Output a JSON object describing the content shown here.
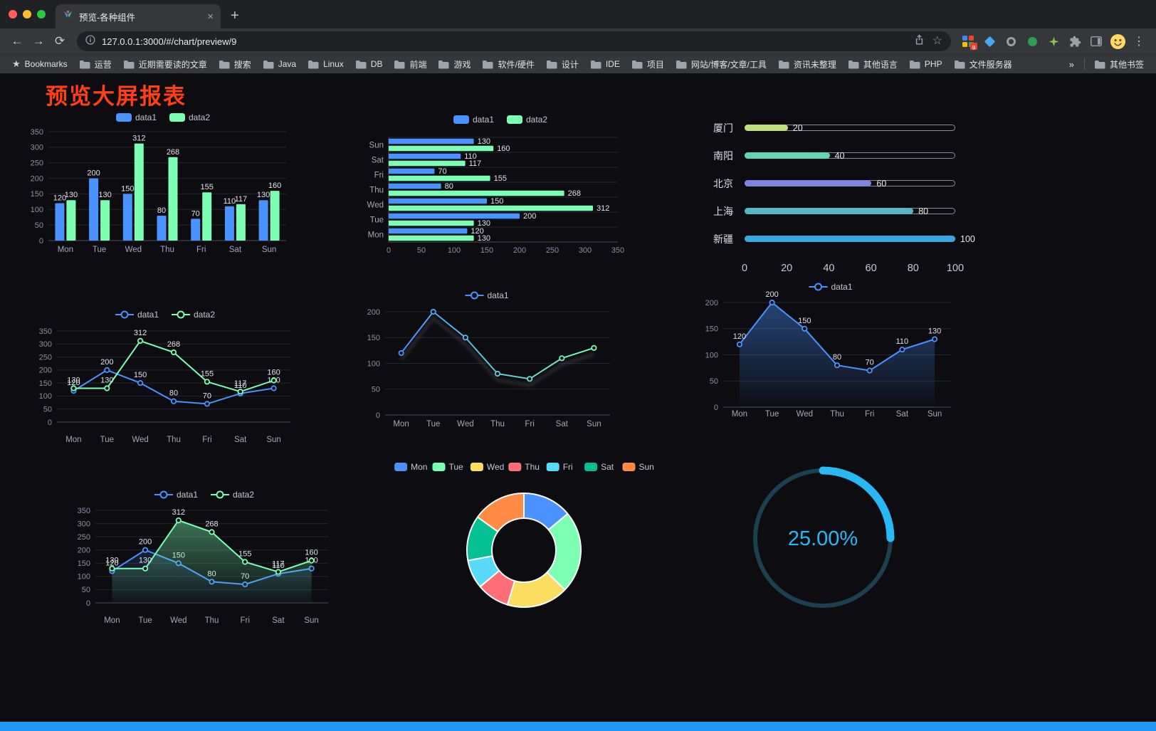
{
  "browser": {
    "tab_title": "预览-各种组件",
    "url": "127.0.0.1:3000/#/chart/preview/9",
    "bookmarks_label": "Bookmarks",
    "bookmarks": [
      "运营",
      "近期需要读的文章",
      "搜索",
      "Java",
      "Linux",
      "DB",
      "前端",
      "游戏",
      "软件/硬件",
      "设计",
      "IDE",
      "项目",
      "网站/博客/文章/工具",
      "资讯未整理",
      "其他语言",
      "PHP",
      "文件服务器"
    ],
    "bookmarks_overflow": "»",
    "other_bookmarks": "其他书签"
  },
  "page": {
    "title": "预览大屏报表"
  },
  "chart_data": [
    {
      "id": "bar-grouped",
      "type": "bar",
      "title": "",
      "legend": [
        "data1",
        "data2"
      ],
      "legend_position": "top",
      "categories": [
        "Mon",
        "Tue",
        "Wed",
        "Thu",
        "Fri",
        "Sat",
        "Sun"
      ],
      "series": [
        {
          "name": "data1",
          "color": "#4992ff",
          "values": [
            120,
            200,
            150,
            80,
            70,
            110,
            130
          ]
        },
        {
          "name": "data2",
          "color": "#7cffb2",
          "values": [
            130,
            130,
            312,
            268,
            155,
            117,
            160
          ]
        }
      ],
      "ylim": [
        0,
        350
      ],
      "ytick": 50,
      "grid": true,
      "labels": true
    },
    {
      "id": "bar-horizontal",
      "type": "hbar",
      "legend": [
        "data1",
        "data2"
      ],
      "legend_position": "top",
      "categories": [
        "Mon",
        "Tue",
        "Wed",
        "Thu",
        "Fri",
        "Sat",
        "Sun"
      ],
      "series": [
        {
          "name": "data1",
          "color": "#4992ff",
          "values": [
            120,
            200,
            150,
            80,
            70,
            110,
            130
          ]
        },
        {
          "name": "data2",
          "color": "#7cffb2",
          "values": [
            130,
            130,
            312,
            268,
            155,
            117,
            160
          ]
        }
      ],
      "xlim": [
        0,
        350
      ],
      "xtick": 50,
      "grid": true,
      "labels": true
    },
    {
      "id": "city-progress",
      "type": "progress",
      "items": [
        {
          "label": "厦门",
          "value": 20,
          "color": "#bfe07d"
        },
        {
          "label": "南阳",
          "value": 40,
          "color": "#63d5b2"
        },
        {
          "label": "北京",
          "value": 60,
          "color": "#7d85dd"
        },
        {
          "label": "上海",
          "value": 80,
          "color": "#56b6c4"
        },
        {
          "label": "新疆",
          "value": 100,
          "color": "#38a7e0"
        }
      ],
      "xlim": [
        0,
        100
      ],
      "xticks": [
        0,
        20,
        40,
        60,
        80,
        100
      ]
    },
    {
      "id": "line-dual",
      "type": "line",
      "legend": [
        "data1",
        "data2"
      ],
      "legend_position": "top",
      "categories": [
        "Mon",
        "Tue",
        "Wed",
        "Thu",
        "Fri",
        "Sat",
        "Sun"
      ],
      "series": [
        {
          "name": "data1",
          "color": "#4992ff",
          "values": [
            120,
            200,
            150,
            80,
            70,
            110,
            130
          ]
        },
        {
          "name": "data2",
          "color": "#7cffb2",
          "values": [
            130,
            130,
            312,
            268,
            155,
            117,
            160
          ]
        }
      ],
      "ylim": [
        0,
        350
      ],
      "ytick": 50,
      "grid": true,
      "labels": true
    },
    {
      "id": "line-gradient",
      "type": "line",
      "legend": [
        "data1"
      ],
      "legend_position": "top",
      "categories": [
        "Mon",
        "Tue",
        "Wed",
        "Thu",
        "Fri",
        "Sat",
        "Sun"
      ],
      "series": [
        {
          "name": "data1",
          "color": "#4992ff",
          "color_end": "#7cffb2",
          "values": [
            120,
            200,
            150,
            80,
            70,
            110,
            130
          ]
        }
      ],
      "ylim": [
        0,
        200
      ],
      "ytick": 50,
      "grid": true,
      "labels": false,
      "shadow": true
    },
    {
      "id": "area-single",
      "type": "line",
      "legend": [
        "data1"
      ],
      "legend_position": "top",
      "categories": [
        "Mon",
        "Tue",
        "Wed",
        "Thu",
        "Fri",
        "Sat",
        "Sun"
      ],
      "series": [
        {
          "name": "data1",
          "color": "#4992ff",
          "values": [
            120,
            200,
            150,
            80,
            70,
            110,
            130
          ],
          "area": 0.42
        }
      ],
      "ylim": [
        0,
        200
      ],
      "ytick": 50,
      "grid": true,
      "labels": true
    },
    {
      "id": "line-dual-area",
      "type": "line",
      "legend": [
        "data1",
        "data2"
      ],
      "legend_position": "top",
      "categories": [
        "Mon",
        "Tue",
        "Wed",
        "Thu",
        "Fri",
        "Sat",
        "Sun"
      ],
      "series": [
        {
          "name": "data1",
          "color": "#4992ff",
          "values": [
            120,
            200,
            150,
            80,
            70,
            110,
            130
          ],
          "area": 0.16
        },
        {
          "name": "data2",
          "color": "#7cffb2",
          "values": [
            130,
            130,
            312,
            268,
            155,
            117,
            160
          ],
          "area": 0.42
        }
      ],
      "ylim": [
        0,
        350
      ],
      "ytick": 50,
      "grid": true,
      "labels": true
    },
    {
      "id": "pie-donut",
      "type": "pie",
      "legend_position": "top",
      "items": [
        {
          "name": "Mon",
          "value": 120,
          "color": "#4992ff"
        },
        {
          "name": "Tue",
          "value": 200,
          "color": "#7cffb2"
        },
        {
          "name": "Wed",
          "value": 150,
          "color": "#fddd60"
        },
        {
          "name": "Thu",
          "value": 80,
          "color": "#ff6e76"
        },
        {
          "name": "Fri",
          "value": 70,
          "color": "#58d9f9"
        },
        {
          "name": "Sat",
          "value": 110,
          "color": "#05c091"
        },
        {
          "name": "Sun",
          "value": 130,
          "color": "#ff8a45"
        }
      ]
    },
    {
      "id": "gauge-progress",
      "type": "gauge",
      "value": 25,
      "label": "25.00%",
      "color": "#2ab8f5",
      "track_color": "#1c414e"
    }
  ]
}
